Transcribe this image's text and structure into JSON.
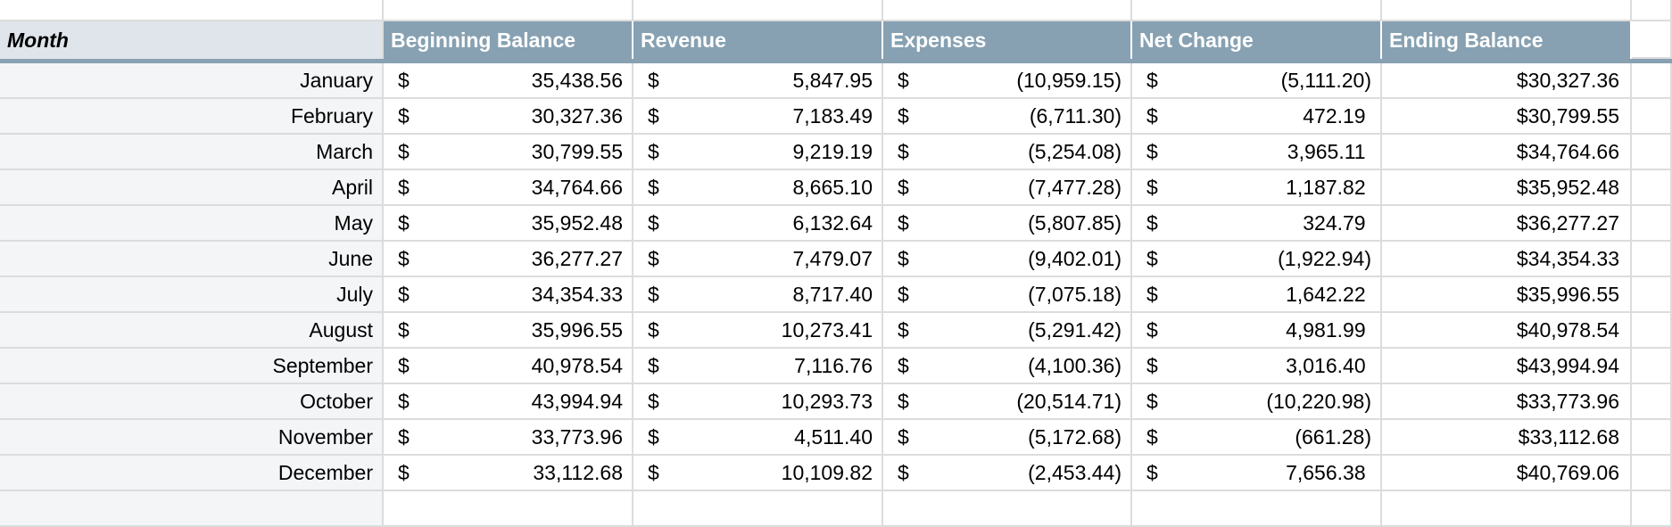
{
  "headers": [
    "Month",
    "Beginning Balance",
    "Revenue",
    "Expenses",
    "Net Change",
    "Ending Balance"
  ],
  "currency_symbol": "$",
  "rows": [
    {
      "month": "January",
      "beginning": "35,438.56",
      "revenue": "5,847.95",
      "expenses": "(10,959.15)",
      "net": "(5,111.20)",
      "ending": "$30,327.36"
    },
    {
      "month": "February",
      "beginning": "30,327.36",
      "revenue": "7,183.49",
      "expenses": "(6,711.30)",
      "net": "472.19 ",
      "ending": "$30,799.55"
    },
    {
      "month": "March",
      "beginning": "30,799.55",
      "revenue": "9,219.19",
      "expenses": "(5,254.08)",
      "net": "3,965.11 ",
      "ending": "$34,764.66"
    },
    {
      "month": "April",
      "beginning": "34,764.66",
      "revenue": "8,665.10",
      "expenses": "(7,477.28)",
      "net": "1,187.82 ",
      "ending": "$35,952.48"
    },
    {
      "month": "May",
      "beginning": "35,952.48",
      "revenue": "6,132.64",
      "expenses": "(5,807.85)",
      "net": "324.79 ",
      "ending": "$36,277.27"
    },
    {
      "month": "June",
      "beginning": "36,277.27",
      "revenue": "7,479.07",
      "expenses": "(9,402.01)",
      "net": "(1,922.94)",
      "ending": "$34,354.33"
    },
    {
      "month": "July",
      "beginning": "34,354.33",
      "revenue": "8,717.40",
      "expenses": "(7,075.18)",
      "net": "1,642.22 ",
      "ending": "$35,996.55"
    },
    {
      "month": "August",
      "beginning": "35,996.55",
      "revenue": "10,273.41",
      "expenses": "(5,291.42)",
      "net": "4,981.99 ",
      "ending": "$40,978.54"
    },
    {
      "month": "September",
      "beginning": "40,978.54",
      "revenue": "7,116.76",
      "expenses": "(4,100.36)",
      "net": "3,016.40 ",
      "ending": "$43,994.94"
    },
    {
      "month": "October",
      "beginning": "43,994.94",
      "revenue": "10,293.73",
      "expenses": "(20,514.71)",
      "net": "(10,220.98)",
      "ending": "$33,773.96"
    },
    {
      "month": "November",
      "beginning": "33,773.96",
      "revenue": "4,511.40",
      "expenses": "(5,172.68)",
      "net": "(661.28)",
      "ending": "$33,112.68"
    },
    {
      "month": "December",
      "beginning": "33,112.68",
      "revenue": "10,109.82",
      "expenses": "(2,453.44)",
      "net": "7,656.38 ",
      "ending": "$40,769.06"
    }
  ],
  "colors": {
    "header_bg": "#87a1b2",
    "month_header_bg": "#dfe5ea",
    "month_col_bg": "#f3f5f7"
  }
}
